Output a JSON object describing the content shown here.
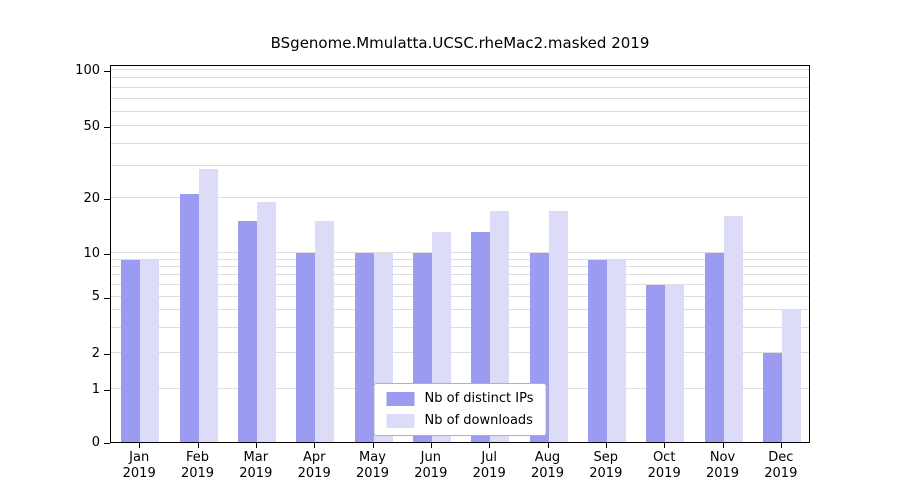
{
  "chart_data": {
    "type": "bar",
    "title": "BSgenome.Mmulatta.UCSC.rheMac2.masked 2019",
    "year": "2019",
    "categories": [
      "Jan",
      "Feb",
      "Mar",
      "Apr",
      "May",
      "Jun",
      "Jul",
      "Aug",
      "Sep",
      "Oct",
      "Nov",
      "Dec"
    ],
    "series": [
      {
        "name": "Nb of distinct IPs",
        "key": "distinct-ips",
        "color": "#9b9bf1",
        "values": [
          9,
          21,
          15,
          10,
          10,
          10,
          13,
          10,
          9,
          6,
          10,
          2
        ]
      },
      {
        "name": "Nb of downloads",
        "key": "downloads",
        "color": "#dcdcf9",
        "values": [
          9,
          29,
          19,
          15,
          10,
          13,
          17,
          17,
          9,
          6,
          16,
          4
        ]
      }
    ],
    "y_ticks": [
      0,
      1,
      2,
      5,
      10,
      20,
      50,
      100
    ],
    "gridlines": [
      1,
      2,
      3,
      4,
      5,
      6,
      7,
      8,
      9,
      10,
      20,
      30,
      40,
      50,
      60,
      70,
      80,
      90,
      100
    ],
    "ylim": [
      0,
      100
    ],
    "yscale": "log-with-zero",
    "grid": true,
    "legend_position": "lower center"
  }
}
